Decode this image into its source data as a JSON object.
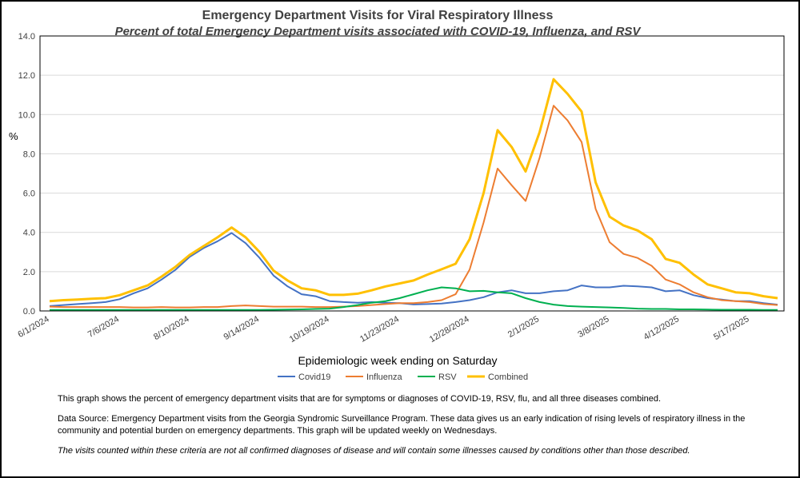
{
  "chart_data": {
    "type": "line",
    "title": "Emergency Department Visits for Viral Respiratory Illness",
    "subtitle": "Percent of total Emergency Department visits associated with COVID-19, Influenza, and RSV",
    "ylabel": "%",
    "xlabel": "Epidemiologic  week ending on Saturday",
    "ylim": [
      0,
      14
    ],
    "yticks": [
      0,
      2,
      4,
      6,
      8,
      10,
      12,
      14
    ],
    "ytick_labels": [
      "0.0",
      "2.0",
      "4.0",
      "6.0",
      "8.0",
      "10.0",
      "12.0",
      "14.0"
    ],
    "grid": true,
    "legend_position": "bottom",
    "x_tick_labels": [
      "6/1/2024",
      "7/6/2024",
      "8/10/2024",
      "9/14/2024",
      "10/19/2024",
      "11/23/2024",
      "12/28/2024",
      "2/1/2025",
      "3/8/2025",
      "4/12/2025",
      "5/17/2025"
    ],
    "x_tick_indices": [
      0,
      5,
      10,
      15,
      20,
      25,
      30,
      35,
      40,
      45,
      50
    ],
    "series": [
      {
        "name": "Covid19",
        "color": "#4472c4",
        "values": [
          0.25,
          0.3,
          0.35,
          0.4,
          0.45,
          0.6,
          0.9,
          1.15,
          1.6,
          2.1,
          2.75,
          3.2,
          3.55,
          3.97,
          3.45,
          2.7,
          1.8,
          1.25,
          0.85,
          0.75,
          0.5,
          0.45,
          0.42,
          0.45,
          0.42,
          0.4,
          0.33,
          0.35,
          0.38,
          0.45,
          0.55,
          0.7,
          0.95,
          1.05,
          0.9,
          0.9,
          1.0,
          1.05,
          1.3,
          1.2,
          1.2,
          1.28,
          1.25,
          1.2,
          1.0,
          1.05,
          0.8,
          0.65,
          0.58,
          0.5,
          0.5,
          0.4,
          0.32
        ]
      },
      {
        "name": "Influenza",
        "color": "#ed7d31",
        "values": [
          0.22,
          0.2,
          0.2,
          0.2,
          0.2,
          0.2,
          0.18,
          0.18,
          0.2,
          0.18,
          0.18,
          0.2,
          0.2,
          0.25,
          0.28,
          0.25,
          0.22,
          0.22,
          0.22,
          0.2,
          0.2,
          0.22,
          0.25,
          0.3,
          0.35,
          0.4,
          0.4,
          0.45,
          0.55,
          0.85,
          2.1,
          4.5,
          7.25,
          6.4,
          5.6,
          7.8,
          10.45,
          9.7,
          8.6,
          5.2,
          3.5,
          2.9,
          2.7,
          2.3,
          1.6,
          1.35,
          0.95,
          0.7,
          0.55,
          0.5,
          0.45,
          0.35,
          0.3
        ]
      },
      {
        "name": "RSV",
        "color": "#00b050",
        "values": [
          0.05,
          0.05,
          0.05,
          0.05,
          0.05,
          0.05,
          0.05,
          0.05,
          0.05,
          0.05,
          0.05,
          0.05,
          0.05,
          0.05,
          0.05,
          0.05,
          0.06,
          0.07,
          0.08,
          0.1,
          0.12,
          0.2,
          0.3,
          0.42,
          0.5,
          0.65,
          0.85,
          1.05,
          1.2,
          1.15,
          1.0,
          1.02,
          0.95,
          0.9,
          0.65,
          0.45,
          0.32,
          0.25,
          0.22,
          0.2,
          0.18,
          0.15,
          0.12,
          0.1,
          0.1,
          0.08,
          0.08,
          0.07,
          0.06,
          0.06,
          0.06,
          0.05,
          0.05
        ]
      },
      {
        "name": "Combined",
        "color": "#ffc000",
        "values": [
          0.5,
          0.55,
          0.58,
          0.62,
          0.65,
          0.8,
          1.05,
          1.3,
          1.75,
          2.25,
          2.85,
          3.3,
          3.75,
          4.25,
          3.75,
          3.0,
          2.05,
          1.55,
          1.15,
          1.05,
          0.82,
          0.82,
          0.88,
          1.05,
          1.25,
          1.4,
          1.55,
          1.85,
          2.12,
          2.4,
          3.65,
          6.0,
          9.2,
          8.35,
          7.1,
          9.1,
          11.8,
          11.05,
          10.15,
          6.55,
          4.8,
          4.35,
          4.1,
          3.65,
          2.65,
          2.45,
          1.85,
          1.35,
          1.15,
          0.95,
          0.9,
          0.75,
          0.65
        ]
      }
    ]
  },
  "notes": {
    "line1": "This graph shows the percent of emergency department visits that are for symptoms or diagnoses of COVID-19, RSV, flu, and all three diseases combined.",
    "line2": "Data Source: Emergency Department visits from the Georgia Syndromic Surveillance Program. These data gives us an early indication of rising levels of respiratory illness in the community and potential burden on emergency departments. This graph will be updated weekly on Wednesdays.",
    "line3": "The visits counted within these criteria are not all confirmed diagnoses of disease and will contain some illnesses caused by conditions other than those described."
  }
}
